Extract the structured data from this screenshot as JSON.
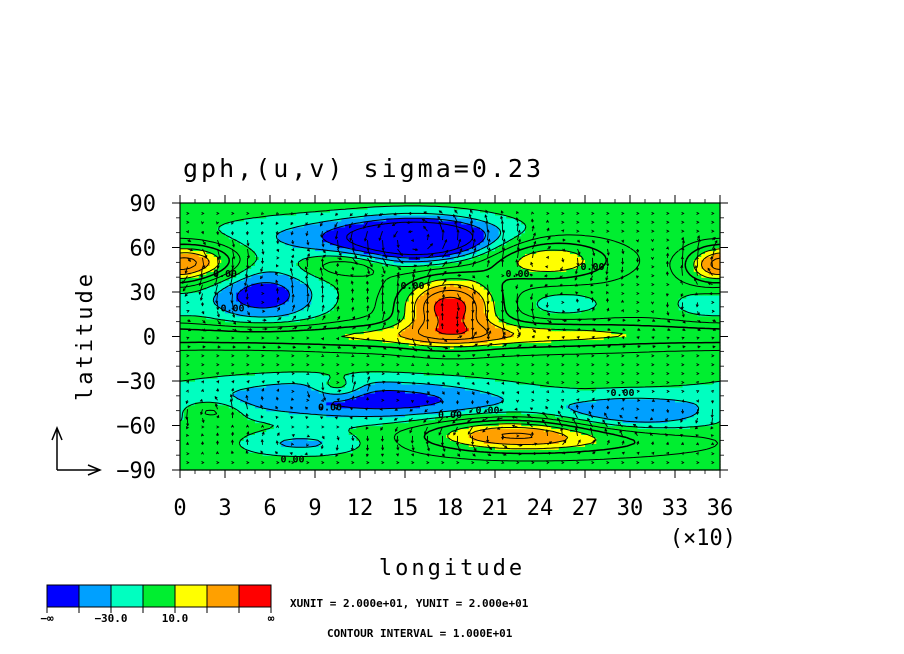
{
  "chart_data": {
    "type": "heatmap",
    "title": "gph,(u,v) sigma=0.23",
    "xlabel": "longitude",
    "ylabel": "latitude",
    "x_multiplier_label": "(×10)",
    "xlim": [
      0,
      36
    ],
    "ylim": [
      -90,
      90
    ],
    "x_ticks": [
      "0",
      "3",
      "6",
      "9",
      "12",
      "15",
      "18",
      "21",
      "24",
      "27",
      "30",
      "33",
      "36"
    ],
    "y_ticks": [
      "90",
      "60",
      "30",
      "0",
      "−30",
      "−60",
      "−90"
    ],
    "grid": false,
    "contour_label": "0.00",
    "colorbar": {
      "colors": [
        "#0000ff",
        "#00a0ff",
        "#00ffc0",
        "#00ee30",
        "#ffff00",
        "#ffa000",
        "#ff0000"
      ],
      "tick_labels": [
        "−∞",
        "−30.0",
        "10.0",
        "∞"
      ]
    },
    "color_levels": [
      -50,
      -40,
      -30,
      -20,
      -10,
      0,
      10,
      20,
      30,
      40,
      50
    ],
    "features": [
      {
        "x": 16,
        "y": 65,
        "value": -48,
        "sx": 3.2,
        "sy": 10
      },
      {
        "x": 12.5,
        "y": 68,
        "value": -22,
        "sx": 7,
        "sy": 10
      },
      {
        "x": 5.5,
        "y": 28,
        "value": -32,
        "sx": 2.8,
        "sy": 14
      },
      {
        "x": 9,
        "y": -40,
        "value": -20,
        "sx": 7,
        "sy": 10
      },
      {
        "x": 16,
        "y": -45,
        "value": -18,
        "sx": 6,
        "sy": 10
      },
      {
        "x": 30,
        "y": -52,
        "value": -25,
        "sx": 4,
        "sy": 9
      },
      {
        "x": 8,
        "y": -72,
        "value": -18,
        "sx": 3,
        "sy": 6
      },
      {
        "x": 25.5,
        "y": 22,
        "value": -12,
        "sx": 2,
        "sy": 7
      },
      {
        "x": 35,
        "y": 22,
        "value": -12,
        "sx": 1.5,
        "sy": 7
      },
      {
        "x": 18,
        "y": 20,
        "value": 60,
        "sx": 2.2,
        "sy": 14
      },
      {
        "x": 19.5,
        "y": 0,
        "value": 18,
        "sx": 8,
        "sy": 7
      },
      {
        "x": 27,
        "y": 2,
        "value": 15,
        "sx": 10,
        "sy": 6
      },
      {
        "x": 6,
        "y": 0,
        "value": 15,
        "sx": 6,
        "sy": 5
      },
      {
        "x": 1.5,
        "y": 50,
        "value": 36,
        "sx": 1.8,
        "sy": 9
      },
      {
        "x": 24.5,
        "y": 52,
        "value": 34,
        "sx": 3,
        "sy": 10
      },
      {
        "x": 35.5,
        "y": 48,
        "value": 28,
        "sx": 1.3,
        "sy": 9
      },
      {
        "x": 22,
        "y": -65,
        "value": 38,
        "sx": 4,
        "sy": 8
      },
      {
        "x": 10.5,
        "y": -35,
        "value": 18,
        "sx": 1.2,
        "sy": 5
      },
      {
        "x": 2,
        "y": -50,
        "value": 16,
        "sx": 1.4,
        "sy": 5
      },
      {
        "x": 11,
        "y": 48,
        "value": 16,
        "sx": 2,
        "sy": 6
      },
      {
        "x": 27,
        "y": -70,
        "value": 16,
        "sx": 6,
        "sy": 7
      }
    ],
    "background_value": -14,
    "info_lines": [
      "XUNIT = 2.000e+01, YUNIT = 2.000e+01",
      "CONTOUR INTERVAL = 1.000E+01"
    ]
  }
}
